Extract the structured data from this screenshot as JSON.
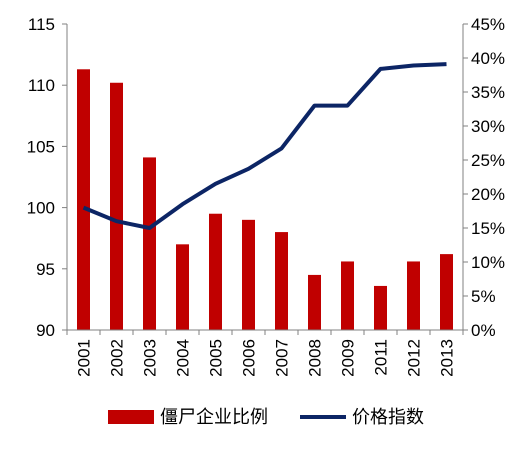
{
  "chart_data": {
    "type": "bar+line",
    "categories": [
      "2001",
      "2002",
      "2003",
      "2004",
      "2005",
      "2006",
      "2007",
      "2008",
      "2009",
      "2011",
      "2012",
      "2013"
    ],
    "series": [
      {
        "name": "僵尸企业比例",
        "type": "bar",
        "axis": "left",
        "color": "#c00000",
        "values": [
          111.3,
          110.2,
          104.1,
          97.0,
          99.5,
          99.0,
          98.0,
          94.5,
          95.6,
          93.6,
          95.6,
          96.2
        ]
      },
      {
        "name": "价格指数",
        "type": "line",
        "axis": "right",
        "color": "#0c2565",
        "values": [
          0.18,
          0.16,
          0.15,
          0.185,
          0.215,
          0.237,
          0.267,
          0.33,
          0.33,
          0.384,
          0.389,
          0.391
        ]
      }
    ],
    "left_axis": {
      "min": 90,
      "max": 115,
      "ticks": [
        "90",
        "95",
        "100",
        "105",
        "110",
        "115"
      ]
    },
    "right_axis": {
      "min": 0,
      "max": 0.45,
      "ticks": [
        "0%",
        "5%",
        "10%",
        "15%",
        "20%",
        "25%",
        "30%",
        "35%",
        "40%",
        "45%"
      ]
    },
    "grid": false,
    "legend_position": "bottom",
    "title": "",
    "xlabel": "",
    "ylabel": ""
  }
}
